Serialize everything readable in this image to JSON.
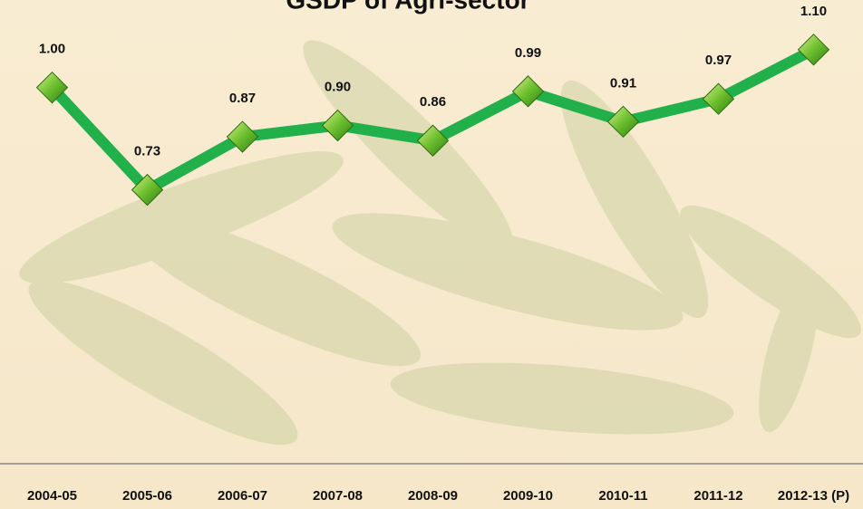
{
  "chart_data": {
    "type": "line",
    "title": "GSDP of Agri-sector",
    "categories": [
      "2004-05",
      "2005-06",
      "2006-07",
      "2007-08",
      "2008-09",
      "2009-10",
      "2010-11",
      "2011-12",
      "2012-13 (P)"
    ],
    "values": [
      1.0,
      0.73,
      0.87,
      0.9,
      0.86,
      0.99,
      0.91,
      0.97,
      1.1
    ],
    "value_labels": [
      "1.00",
      "0.73",
      "0.87",
      "0.90",
      "0.86",
      "0.99",
      "0.91",
      "0.97",
      "1.10"
    ],
    "color": "#22b04b",
    "ylim": [
      0.6,
      1.2
    ]
  }
}
